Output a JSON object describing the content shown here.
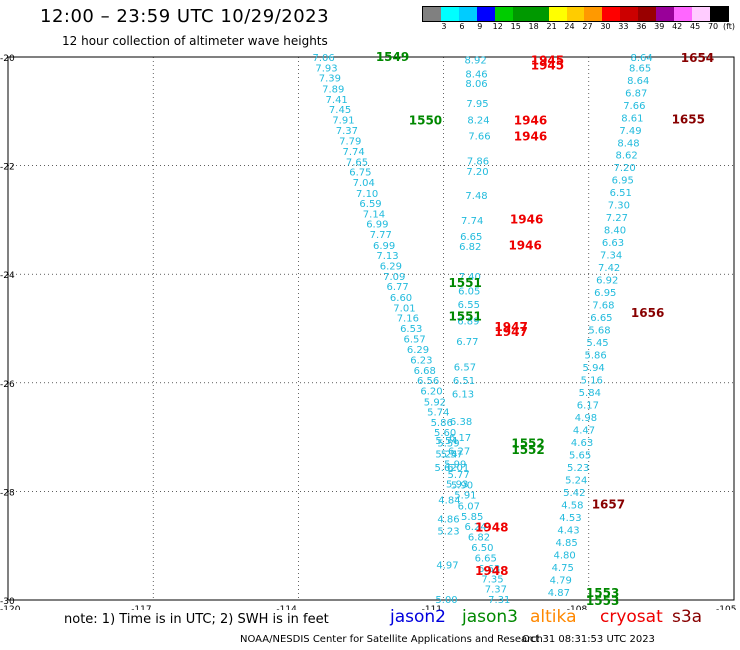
{
  "header": {
    "title": "12:00 – 23:59 UTC 10/29/2023",
    "subtitle": "12 hour collection of altimeter wave heights"
  },
  "legend": {
    "unit": "(ft)",
    "colors": [
      "#808080",
      "#00ffff",
      "#00ccff",
      "#0000ff",
      "#00cc00",
      "#009900",
      "#009900",
      "#ffff00",
      "#ffcc00",
      "#ff9900",
      "#ff0000",
      "#cc0000",
      "#990000",
      "#990099",
      "#ff66ff",
      "#ffccff",
      "#000000"
    ],
    "labels": [
      "3",
      "6",
      "9",
      "12",
      "15",
      "18",
      "21",
      "24",
      "27",
      "30",
      "33",
      "36",
      "39",
      "42",
      "45",
      "70"
    ]
  },
  "map": {
    "lat_labels": [
      "-20",
      "-22",
      "-24",
      "-26",
      "-28",
      "-30"
    ],
    "lon_labels": [
      "-120",
      "-117",
      "-114",
      "-111",
      "-108",
      "-105"
    ],
    "lat_range": [
      -20,
      -30
    ],
    "lon_range": [
      -120,
      -105
    ],
    "track_color": "#22bbdd",
    "tracks": [
      {
        "name": "west",
        "points": [
          {
            "lon": -113.42,
            "lat": -20.0,
            "v": "7.06"
          },
          {
            "lon": -113.36,
            "lat": -20.19,
            "v": "7.93"
          },
          {
            "lon": -113.29,
            "lat": -20.38,
            "v": "7.39"
          },
          {
            "lon": -113.22,
            "lat": -20.58,
            "v": "7.89"
          },
          {
            "lon": -113.15,
            "lat": -20.77,
            "v": "7.41"
          },
          {
            "lon": -113.08,
            "lat": -20.96,
            "v": "7.45"
          },
          {
            "lon": -113.01,
            "lat": -21.15,
            "v": "7.91"
          },
          {
            "lon": -112.94,
            "lat": -21.34,
            "v": "7.37"
          },
          {
            "lon": -112.87,
            "lat": -21.54,
            "v": "7.79"
          },
          {
            "lon": -112.8,
            "lat": -21.73,
            "v": "7.74"
          },
          {
            "lon": -112.73,
            "lat": -21.92,
            "v": "7.65"
          },
          {
            "lon": -112.66,
            "lat": -22.11,
            "v": "6.75"
          },
          {
            "lon": -112.59,
            "lat": -22.3,
            "v": "7.04"
          },
          {
            "lon": -112.52,
            "lat": -22.5,
            "v": "7.10"
          },
          {
            "lon": -112.45,
            "lat": -22.69,
            "v": "6.59"
          },
          {
            "lon": -112.38,
            "lat": -22.88,
            "v": "7.14"
          },
          {
            "lon": -112.31,
            "lat": -23.07,
            "v": "6.99"
          },
          {
            "lon": -112.24,
            "lat": -23.26,
            "v": "7.77"
          },
          {
            "lon": -112.17,
            "lat": -23.46,
            "v": "6.99"
          },
          {
            "lon": -112.1,
            "lat": -23.65,
            "v": "7.13"
          },
          {
            "lon": -112.03,
            "lat": -23.84,
            "v": "6.29"
          },
          {
            "lon": -111.96,
            "lat": -24.03,
            "v": "7.09"
          },
          {
            "lon": -111.89,
            "lat": -24.22,
            "v": "6.77"
          },
          {
            "lon": -111.82,
            "lat": -24.42,
            "v": "6.60"
          },
          {
            "lon": -111.75,
            "lat": -24.61,
            "v": "7.01"
          },
          {
            "lon": -111.68,
            "lat": -24.8,
            "v": "7.16"
          },
          {
            "lon": -111.61,
            "lat": -24.99,
            "v": "6.53"
          },
          {
            "lon": -111.54,
            "lat": -25.18,
            "v": "6.57"
          },
          {
            "lon": -111.47,
            "lat": -25.38,
            "v": "6.29"
          },
          {
            "lon": -111.4,
            "lat": -25.57,
            "v": "6.23"
          },
          {
            "lon": -111.33,
            "lat": -25.76,
            "v": "6.68"
          },
          {
            "lon": -111.26,
            "lat": -25.95,
            "v": "6.56"
          },
          {
            "lon": -111.19,
            "lat": -26.14,
            "v": "6.20"
          },
          {
            "lon": -111.12,
            "lat": -26.34,
            "v": "5.92"
          },
          {
            "lon": -111.05,
            "lat": -26.53,
            "v": "5.74"
          },
          {
            "lon": -110.98,
            "lat": -26.72,
            "v": "5.86"
          },
          {
            "lon": -110.91,
            "lat": -26.91,
            "v": "5.60"
          },
          {
            "lon": -110.84,
            "lat": -27.1,
            "v": "5.59"
          },
          {
            "lon": -110.77,
            "lat": -27.3,
            "v": "5.57"
          },
          {
            "lon": -110.7,
            "lat": -27.49,
            "v": "5.99"
          },
          {
            "lon": -110.63,
            "lat": -27.68,
            "v": "5.77"
          },
          {
            "lon": -110.56,
            "lat": -27.87,
            "v": "5.90"
          },
          {
            "lon": -110.49,
            "lat": -28.06,
            "v": "5.91"
          },
          {
            "lon": -110.42,
            "lat": -28.26,
            "v": "6.07"
          },
          {
            "lon": -110.35,
            "lat": -28.45,
            "v": "5.85"
          },
          {
            "lon": -110.28,
            "lat": -28.64,
            "v": "6.24"
          },
          {
            "lon": -110.21,
            "lat": -28.83,
            "v": "6.82"
          },
          {
            "lon": -110.14,
            "lat": -29.02,
            "v": "6.50"
          },
          {
            "lon": -110.07,
            "lat": -29.22,
            "v": "6.65"
          },
          {
            "lon": -110.0,
            "lat": -29.41,
            "v": "6.63"
          },
          {
            "lon": -109.93,
            "lat": -29.6,
            "v": "7.35"
          },
          {
            "lon": -109.86,
            "lat": -29.79,
            "v": "7.37"
          },
          {
            "lon": -109.79,
            "lat": -29.98,
            "v": "7.31"
          }
        ]
      },
      {
        "name": "middle",
        "points": [
          {
            "lon": -110.28,
            "lat": -20.05,
            "v": "8.92"
          },
          {
            "lon": -110.26,
            "lat": -20.3,
            "v": "8.46"
          },
          {
            "lon": -110.26,
            "lat": -20.48,
            "v": "8.06"
          },
          {
            "lon": -110.24,
            "lat": -20.85,
            "v": "7.95"
          },
          {
            "lon": -110.22,
            "lat": -21.15,
            "v": "8.24"
          },
          {
            "lon": -110.2,
            "lat": -21.45,
            "v": "7.66"
          },
          {
            "lon": -110.23,
            "lat": -21.91,
            "v": "7.86"
          },
          {
            "lon": -110.24,
            "lat": -22.1,
            "v": "7.20"
          },
          {
            "lon": -110.26,
            "lat": -22.54,
            "v": "7.48"
          },
          {
            "lon": -110.35,
            "lat": -23.0,
            "v": "7.74"
          },
          {
            "lon": -110.37,
            "lat": -23.3,
            "v": "6.65"
          },
          {
            "lon": -110.39,
            "lat": -23.48,
            "v": "6.82"
          },
          {
            "lon": -110.4,
            "lat": -24.03,
            "v": "7.40"
          },
          {
            "lon": -110.41,
            "lat": -24.3,
            "v": "6.05"
          },
          {
            "lon": -110.42,
            "lat": -24.55,
            "v": "6.55"
          },
          {
            "lon": -110.43,
            "lat": -24.85,
            "v": "6.89"
          },
          {
            "lon": -110.45,
            "lat": -25.23,
            "v": "6.77"
          },
          {
            "lon": -110.5,
            "lat": -25.7,
            "v": "6.57"
          },
          {
            "lon": -110.52,
            "lat": -25.95,
            "v": "6.51"
          },
          {
            "lon": -110.54,
            "lat": -26.2,
            "v": "6.13"
          },
          {
            "lon": -110.58,
            "lat": -26.7,
            "v": "6.38"
          },
          {
            "lon": -110.6,
            "lat": -27.0,
            "v": "6.17"
          },
          {
            "lon": -110.62,
            "lat": -27.25,
            "v": "6.27"
          },
          {
            "lon": -110.64,
            "lat": -27.55,
            "v": "6.01"
          },
          {
            "lon": -110.66,
            "lat": -27.85,
            "v": "5.93"
          }
        ]
      },
      {
        "name": "east",
        "points": [
          {
            "lon": -106.85,
            "lat": -20.0,
            "v": "8.64"
          },
          {
            "lon": -106.88,
            "lat": -20.19,
            "v": "8.65"
          },
          {
            "lon": -106.92,
            "lat": -20.42,
            "v": "8.64"
          },
          {
            "lon": -106.96,
            "lat": -20.65,
            "v": "6.87"
          },
          {
            "lon": -107.0,
            "lat": -20.88,
            "v": "7.66"
          },
          {
            "lon": -107.04,
            "lat": -21.11,
            "v": "8.61"
          },
          {
            "lon": -107.08,
            "lat": -21.34,
            "v": "7.49"
          },
          {
            "lon": -107.12,
            "lat": -21.57,
            "v": "8.48"
          },
          {
            "lon": -107.16,
            "lat": -21.8,
            "v": "8.62"
          },
          {
            "lon": -107.2,
            "lat": -22.03,
            "v": "7.20"
          },
          {
            "lon": -107.24,
            "lat": -22.26,
            "v": "6.95"
          },
          {
            "lon": -107.28,
            "lat": -22.49,
            "v": "6.51"
          },
          {
            "lon": -107.32,
            "lat": -22.72,
            "v": "7.30"
          },
          {
            "lon": -107.36,
            "lat": -22.95,
            "v": "7.27"
          },
          {
            "lon": -107.4,
            "lat": -23.18,
            "v": "8.40"
          },
          {
            "lon": -107.44,
            "lat": -23.41,
            "v": "6.63"
          },
          {
            "lon": -107.48,
            "lat": -23.64,
            "v": "7.34"
          },
          {
            "lon": -107.52,
            "lat": -23.87,
            "v": "7.42"
          },
          {
            "lon": -107.56,
            "lat": -24.1,
            "v": "6.92"
          },
          {
            "lon": -107.6,
            "lat": -24.33,
            "v": "6.95"
          },
          {
            "lon": -107.64,
            "lat": -24.56,
            "v": "7.68"
          },
          {
            "lon": -107.68,
            "lat": -24.79,
            "v": "6.65"
          },
          {
            "lon": -107.72,
            "lat": -25.02,
            "v": "5.68"
          },
          {
            "lon": -107.76,
            "lat": -25.25,
            "v": "5.45"
          },
          {
            "lon": -107.8,
            "lat": -25.48,
            "v": "5.86"
          },
          {
            "lon": -107.84,
            "lat": -25.71,
            "v": "5.94"
          },
          {
            "lon": -107.88,
            "lat": -25.94,
            "v": "5.16"
          },
          {
            "lon": -107.92,
            "lat": -26.17,
            "v": "5.84"
          },
          {
            "lon": -107.96,
            "lat": -26.4,
            "v": "6.17"
          },
          {
            "lon": -108.0,
            "lat": -26.63,
            "v": "4.98"
          },
          {
            "lon": -108.04,
            "lat": -26.86,
            "v": "4.47"
          },
          {
            "lon": -108.08,
            "lat": -27.09,
            "v": "4.63"
          },
          {
            "lon": -108.12,
            "lat": -27.32,
            "v": "5.65"
          },
          {
            "lon": -108.16,
            "lat": -27.55,
            "v": "5.23"
          },
          {
            "lon": -108.2,
            "lat": -27.78,
            "v": "5.24"
          },
          {
            "lon": -108.24,
            "lat": -28.01,
            "v": "5.42"
          },
          {
            "lon": -108.28,
            "lat": -28.24,
            "v": "4.58"
          },
          {
            "lon": -108.32,
            "lat": -28.47,
            "v": "4.53"
          },
          {
            "lon": -108.36,
            "lat": -28.7,
            "v": "4.43"
          },
          {
            "lon": -108.4,
            "lat": -28.93,
            "v": "4.85"
          },
          {
            "lon": -108.44,
            "lat": -29.16,
            "v": "4.80"
          },
          {
            "lon": -108.48,
            "lat": -29.39,
            "v": "4.75"
          },
          {
            "lon": -108.52,
            "lat": -29.62,
            "v": "4.79"
          },
          {
            "lon": -108.56,
            "lat": -29.85,
            "v": "4.87"
          }
        ]
      },
      {
        "name": "southwest",
        "points": [
          {
            "lon": -110.88,
            "lat": -27.05,
            "v": "5.54"
          },
          {
            "lon": -110.88,
            "lat": -27.3,
            "v": "5.24"
          },
          {
            "lon": -110.9,
            "lat": -27.55,
            "v": "5.62"
          },
          {
            "lon": -110.82,
            "lat": -28.15,
            "v": "4.84"
          },
          {
            "lon": -110.84,
            "lat": -28.5,
            "v": "4.86"
          },
          {
            "lon": -110.84,
            "lat": -28.72,
            "v": "5.23"
          },
          {
            "lon": -110.86,
            "lat": -29.35,
            "v": "4.97"
          },
          {
            "lon": -110.88,
            "lat": -29.98,
            "v": "5.00"
          },
          {
            "lon": -110.88,
            "lat": -30.2,
            "v": "5.50"
          },
          {
            "lon": -110.9,
            "lat": -30.6,
            "v": "4.48"
          },
          {
            "lon": -110.9,
            "lat": -30.8,
            "v": "4.59"
          },
          {
            "lon": -110.9,
            "lat": -31.0,
            "v": "4.50"
          },
          {
            "lon": -110.9,
            "lat": -31.2,
            "v": "4.23"
          }
        ]
      }
    ],
    "time_labels": [
      {
        "lon": -112.4,
        "lat": -19.98,
        "t": "1549",
        "color": "#008800"
      },
      {
        "lon": -111.72,
        "lat": -21.15,
        "t": "1550",
        "color": "#008800"
      },
      {
        "lon": -110.9,
        "lat": -24.14,
        "t": "1551",
        "color": "#008800"
      },
      {
        "lon": -110.9,
        "lat": -24.76,
        "t": "1551",
        "color": "#008800"
      },
      {
        "lon": -109.6,
        "lat": -27.1,
        "t": "1552",
        "color": "#008800"
      },
      {
        "lon": -109.6,
        "lat": -27.22,
        "t": "1552",
        "color": "#008800"
      },
      {
        "lon": -108.06,
        "lat": -29.85,
        "t": "1553",
        "color": "#008800"
      },
      {
        "lon": -108.06,
        "lat": -30.0,
        "t": "1553",
        "color": "#008800"
      },
      {
        "lon": -109.2,
        "lat": -20.05,
        "t": "1945",
        "color": "#ee0000"
      },
      {
        "lon": -109.2,
        "lat": -20.14,
        "t": "1945",
        "color": "#ee0000"
      },
      {
        "lon": -109.55,
        "lat": -21.15,
        "t": "1946",
        "color": "#ee0000"
      },
      {
        "lon": -109.55,
        "lat": -21.45,
        "t": "1946",
        "color": "#ee0000"
      },
      {
        "lon": -109.63,
        "lat": -22.97,
        "t": "1946",
        "color": "#ee0000"
      },
      {
        "lon": -109.66,
        "lat": -23.45,
        "t": "1946",
        "color": "#ee0000"
      },
      {
        "lon": -109.95,
        "lat": -24.95,
        "t": "1947",
        "color": "#ee0000"
      },
      {
        "lon": -109.95,
        "lat": -25.05,
        "t": "1947",
        "color": "#ee0000"
      },
      {
        "lon": -110.35,
        "lat": -28.65,
        "t": "1948",
        "color": "#ee0000"
      },
      {
        "lon": -110.35,
        "lat": -29.45,
        "t": "1948",
        "color": "#ee0000"
      },
      {
        "lon": -106.1,
        "lat": -20.0,
        "t": "1654",
        "color": "#880000"
      },
      {
        "lon": -106.29,
        "lat": -21.13,
        "t": "1655",
        "color": "#880000"
      },
      {
        "lon": -107.13,
        "lat": -24.7,
        "t": "1656",
        "color": "#880000"
      },
      {
        "lon": -107.94,
        "lat": -28.22,
        "t": "1657",
        "color": "#880000"
      }
    ]
  },
  "note": "note:  1) Time is in UTC;  2) SWH is in feet",
  "satellites": [
    {
      "name": "jason2",
      "color": "#0000dd"
    },
    {
      "name": "jason3",
      "color": "#008800"
    },
    {
      "name": "altika",
      "color": "#ff8800"
    },
    {
      "name": "cryosat",
      "color": "#ee0000"
    },
    {
      "name": "s3a",
      "color": "#880000"
    }
  ],
  "footer": {
    "left": "NOAA/NESDIS Center for Satellite Applications and Research",
    "right": "Oct 31 08:31:53 UTC 2023"
  }
}
